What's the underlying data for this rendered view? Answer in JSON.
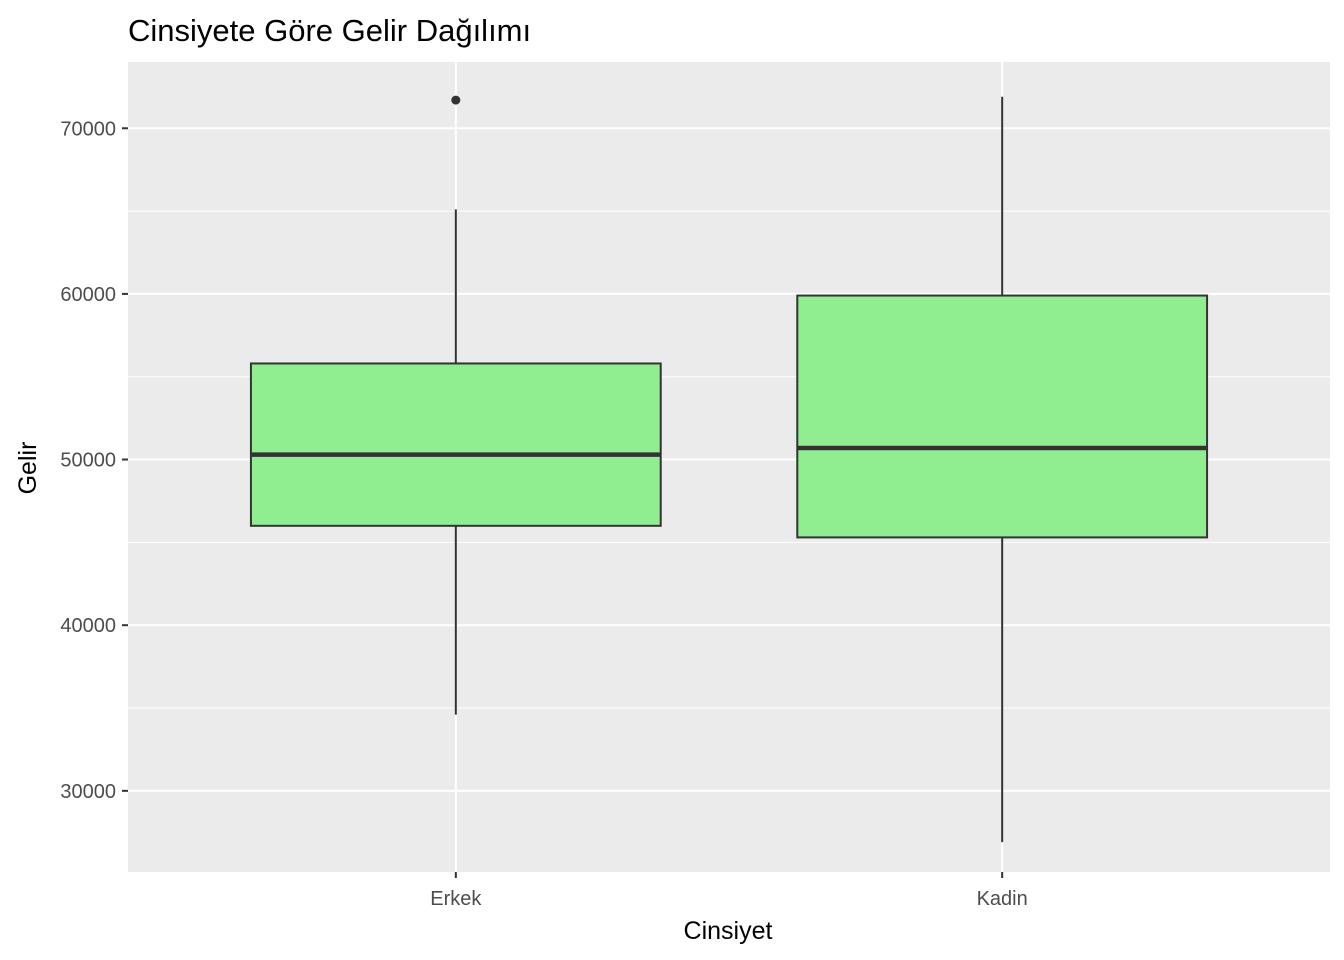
{
  "chart_data": {
    "type": "box",
    "title": "Cinsiyete Göre Gelir Dağılımı",
    "xlabel": "Cinsiyet",
    "ylabel": "Gelir",
    "categories": [
      "Erkek",
      "Kadin"
    ],
    "boxes": [
      {
        "category": "Erkek",
        "whisker_low": 34600,
        "q1": 46000,
        "median": 50300,
        "q3": 55800,
        "whisker_high": 65100,
        "outliers": [
          71700
        ]
      },
      {
        "category": "Kadin",
        "whisker_low": 26900,
        "q1": 45300,
        "median": 50700,
        "q3": 59900,
        "whisker_high": 71900,
        "outliers": []
      }
    ],
    "ylim": [
      25100,
      74000
    ],
    "yticks": [
      30000,
      40000,
      50000,
      60000,
      70000
    ],
    "ytick_labels": [
      "30000",
      "40000",
      "50000",
      "60000",
      "70000"
    ],
    "grid": true,
    "colors": {
      "box_fill": "#90EE90",
      "box_line": "#333333",
      "panel_bg": "#EBEBEB",
      "grid": "#FFFFFF",
      "tick_text": "#4D4D4D",
      "tick_mark": "#333333"
    }
  }
}
